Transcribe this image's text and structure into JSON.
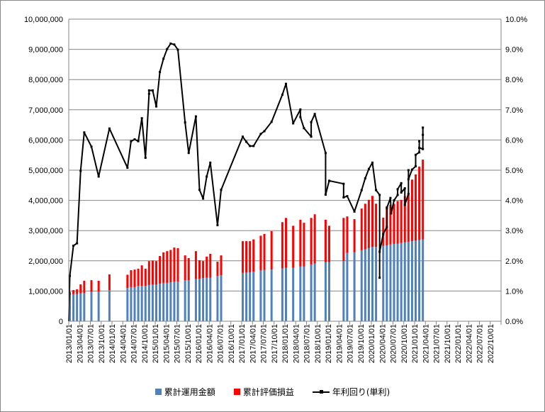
{
  "chart_data": {
    "type": "bar+line",
    "title": "",
    "xlabel": "",
    "ylabel": "",
    "y2label": "",
    "ylim": [
      0,
      10000000
    ],
    "y2lim": [
      0,
      10
    ],
    "grid": true,
    "legend_position": "bottom",
    "y_ticks": [
      "0",
      "1,000,000",
      "2,000,000",
      "3,000,000",
      "4,000,000",
      "5,000,000",
      "6,000,000",
      "7,000,000",
      "8,000,000",
      "9,000,000",
      "10,000,000"
    ],
    "y2_ticks": [
      "0.0%",
      "1.0%",
      "2.0%",
      "3.0%",
      "4.0%",
      "5.0%",
      "6.0%",
      "7.0%",
      "8.0%",
      "9.0%",
      "10.0%"
    ],
    "x_ticks": [
      "2013/01/01",
      "2013/04/01",
      "2013/07/01",
      "2013/10/01",
      "2014/01/01",
      "2014/04/01",
      "2014/07/01",
      "2014/10/01",
      "2015/01/01",
      "2015/04/01",
      "2015/07/01",
      "2015/10/01",
      "2016/01/01",
      "2016/04/01",
      "2016/07/01",
      "2016/10/01",
      "2017/01/01",
      "2017/04/01",
      "2017/07/01",
      "2017/10/01",
      "2018/01/01",
      "2018/04/01",
      "2018/07/01",
      "2018/10/01",
      "2019/01/01",
      "2019/04/01",
      "2019/07/01",
      "2019/10/01",
      "2020/01/01",
      "2020/04/01",
      "2020/07/01",
      "2020/10/01",
      "2021/01/01",
      "2021/04/01",
      "2021/07/01",
      "2021/10/01",
      "2022/01/01",
      "2022/04/01",
      "2022/07/01",
      "2022/10/01"
    ],
    "x_unit": "months since 2013/01",
    "bar_months": [
      0,
      1,
      2,
      3,
      4,
      6,
      8,
      11,
      16,
      17,
      18,
      19,
      20,
      21,
      22,
      23,
      24,
      25,
      26,
      27,
      28,
      29,
      30,
      32,
      33,
      35,
      36,
      37,
      38,
      39,
      41,
      42,
      48,
      49,
      50,
      51,
      53,
      54,
      56,
      59,
      60,
      62,
      64,
      65,
      67,
      68,
      71,
      72,
      76,
      77,
      79,
      81,
      82,
      83,
      84,
      85,
      87,
      88,
      89,
      90,
      91,
      92,
      93,
      94,
      95,
      96,
      97,
      98
    ],
    "series": [
      {
        "name": "累計運用金額",
        "kind": "bar",
        "color": "#4F81BD",
        "values": [
          870000,
          900000,
          900000,
          920000,
          930000,
          970000,
          980000,
          1030000,
          1100000,
          1130000,
          1130000,
          1170000,
          1170000,
          1170000,
          1200000,
          1220000,
          1220000,
          1240000,
          1270000,
          1270000,
          1290000,
          1310000,
          1310000,
          1360000,
          1360000,
          1400000,
          1410000,
          1430000,
          1440000,
          1440000,
          1500000,
          1520000,
          1600000,
          1610000,
          1620000,
          1640000,
          1690000,
          1700000,
          1710000,
          1750000,
          1770000,
          1770000,
          1810000,
          1810000,
          1880000,
          1910000,
          1960000,
          1960000,
          1990000,
          2260000,
          2280000,
          2350000,
          2380000,
          2420000,
          2460000,
          2460000,
          2500000,
          2510000,
          2540000,
          2560000,
          2570000,
          2590000,
          2610000,
          2630000,
          2650000,
          2670000,
          2690000,
          2710000
        ]
      },
      {
        "name": "累計評価損益",
        "kind": "bar-stacked",
        "color": "#FF0000",
        "values": [
          100000,
          130000,
          160000,
          300000,
          410000,
          390000,
          360000,
          520000,
          440000,
          560000,
          580000,
          570000,
          680000,
          570000,
          790000,
          790000,
          770000,
          920000,
          1010000,
          1050000,
          1070000,
          1130000,
          1110000,
          820000,
          730000,
          920000,
          610000,
          560000,
          700000,
          790000,
          470000,
          660000,
          1050000,
          1040000,
          1030000,
          1070000,
          1140000,
          1190000,
          1270000,
          1530000,
          1650000,
          1390000,
          1550000,
          1450000,
          1540000,
          1630000,
          1400000,
          1200000,
          1430000,
          1210000,
          1100000,
          1380000,
          1510000,
          1600000,
          1690000,
          1430000,
          930000,
          1300000,
          1310000,
          1330000,
          1410000,
          1430000,
          1530000,
          1590000,
          2040000,
          2190000,
          2430000,
          2640000
        ]
      },
      {
        "name": "年利回り(単利)",
        "kind": "line",
        "axis": "right",
        "color": "#000000",
        "points": [
          [
            0,
            1.5
          ],
          [
            1,
            2.5
          ],
          [
            2,
            2.58
          ],
          [
            3,
            4.98
          ],
          [
            4,
            6.25
          ],
          [
            6,
            5.78
          ],
          [
            8,
            4.79
          ],
          [
            11,
            6.38
          ],
          [
            16,
            5.08
          ],
          [
            17,
            5.96
          ],
          [
            18,
            6.02
          ],
          [
            19,
            5.96
          ],
          [
            20,
            6.72
          ],
          [
            21,
            5.41
          ],
          [
            22,
            7.53
          ],
          [
            22,
            7.64
          ],
          [
            23,
            7.64
          ],
          [
            24,
            7.11
          ],
          [
            25,
            8.25
          ],
          [
            26,
            8.69
          ],
          [
            27,
            9.01
          ],
          [
            28,
            9.19
          ],
          [
            29,
            9.16
          ],
          [
            30,
            8.99
          ],
          [
            32,
            6.58
          ],
          [
            33,
            5.57
          ],
          [
            35,
            6.78
          ],
          [
            36,
            4.35
          ],
          [
            37,
            4.06
          ],
          [
            38,
            4.79
          ],
          [
            39,
            5.25
          ],
          [
            41,
            3.18
          ],
          [
            42,
            4.35
          ],
          [
            48,
            6.11
          ],
          [
            49,
            5.94
          ],
          [
            50,
            5.8
          ],
          [
            51,
            5.8
          ],
          [
            53,
            6.2
          ],
          [
            54,
            6.29
          ],
          [
            56,
            6.6
          ],
          [
            59,
            7.5
          ],
          [
            60,
            7.86
          ],
          [
            62,
            6.55
          ],
          [
            64,
            7.01
          ],
          [
            64,
            6.76
          ],
          [
            65,
            6.39
          ],
          [
            67,
            6.11
          ],
          [
            67,
            6.59
          ],
          [
            68,
            6.86
          ],
          [
            71,
            5.57
          ],
          [
            71,
            4.19
          ],
          [
            72,
            4.65
          ],
          [
            76,
            4.55
          ],
          [
            76,
            4.1
          ],
          [
            77,
            4.14
          ],
          [
            79,
            3.63
          ],
          [
            81,
            4.34
          ],
          [
            82,
            4.73
          ],
          [
            83,
            5.04
          ],
          [
            84,
            5.25
          ],
          [
            85,
            4.34
          ],
          [
            86,
            4.18
          ],
          [
            86,
            1.44
          ],
          [
            86,
            2.3
          ],
          [
            87,
            2.89
          ],
          [
            88,
            3.12
          ],
          [
            88,
            3.75
          ],
          [
            89,
            4.08
          ],
          [
            89.2,
            3.57
          ],
          [
            90,
            4.0
          ],
          [
            91,
            4.18
          ],
          [
            91,
            4.37
          ],
          [
            92,
            4.57
          ],
          [
            92,
            4.26
          ],
          [
            93,
            4.4
          ],
          [
            93,
            3.85
          ],
          [
            94,
            4.22
          ],
          [
            94,
            5.0
          ],
          [
            94,
            4.7
          ],
          [
            95,
            5.02
          ],
          [
            96,
            5.13
          ],
          [
            96,
            5.51
          ],
          [
            97,
            5.59
          ],
          [
            97,
            5.96
          ],
          [
            97,
            5.74
          ],
          [
            98,
            5.7
          ],
          [
            98,
            6.17
          ],
          [
            98,
            6.41
          ]
        ]
      }
    ]
  },
  "legend": {
    "item1": "累計運用金額",
    "item2": "累計評価損益",
    "item3": "年利回り(単利)"
  }
}
